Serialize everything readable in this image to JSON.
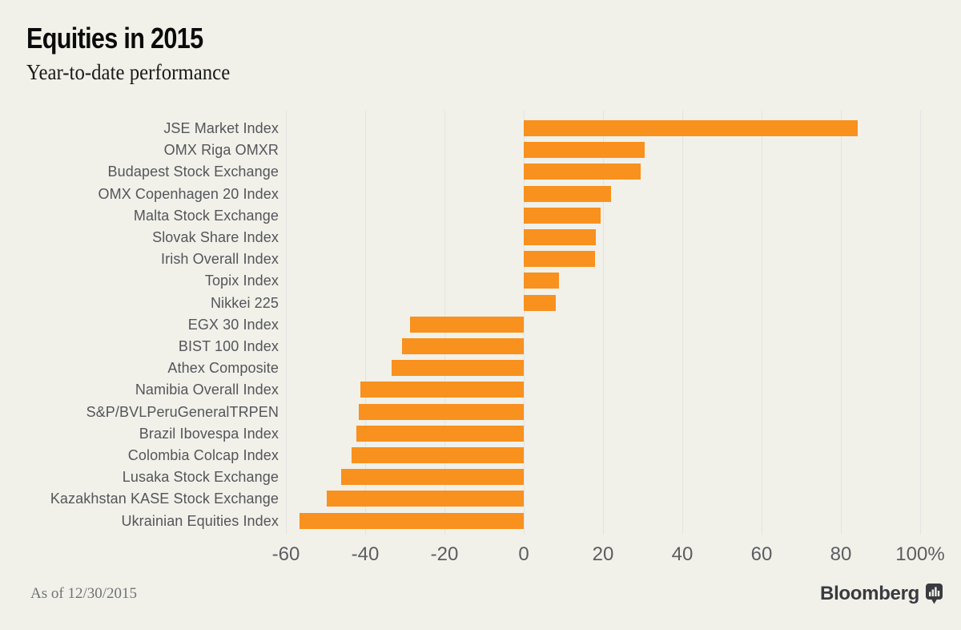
{
  "header": {
    "title": "Equities in 2015",
    "subtitle": "Year-to-date performance"
  },
  "footer": {
    "as_of": "As of 12/30/2015",
    "brand": "Bloomberg",
    "brand_icon": "bar-chart-bubble-icon"
  },
  "colors": {
    "background": "#F1F1EA",
    "bar_orange": "#F8911E",
    "gridline": "#E3E3E2",
    "category_label": "#54555A",
    "axis_tick": "#5C5D61",
    "title": "#0B0B0B",
    "footer_text": "#717276",
    "logo": "#3A3B3F"
  },
  "chart_data": {
    "type": "bar",
    "orientation": "horizontal",
    "title": "Equities in 2015",
    "subtitle": "Year-to-date performance",
    "value_unit": "percent",
    "categories": [
      "JSE Market Index",
      "OMX Riga OMXR",
      "Budapest Stock Exchange",
      "OMX Copenhagen 20 Index",
      "Malta Stock Exchange",
      "Slovak Share Index",
      "Irish Overall Index",
      "Topix Index",
      "Nikkei 225",
      "EGX 30 Index",
      "BIST 100 Index",
      "Athex Composite",
      "Namibia Overall Index",
      "S&P/BVLPeruGeneralTRPEN",
      "Brazil Ibovespa Index",
      "Colombia Colcap Index",
      "Lusaka Stock Exchange",
      "Kazakhstan KASE Stock Exchange",
      "Ukrainian Equities Index"
    ],
    "values": [
      84.2,
      30.6,
      29.4,
      22.1,
      19.3,
      18.2,
      18.0,
      8.9,
      8.0,
      -28.6,
      -30.8,
      -33.3,
      -41.3,
      -41.6,
      -42.2,
      -43.5,
      -46.0,
      -49.6,
      -56.5
    ],
    "xlim": [
      -60,
      100
    ],
    "xticks": {
      "values": [
        -60,
        -40,
        -20,
        0,
        20,
        40,
        60,
        80,
        100
      ],
      "labels": [
        "-60",
        "-40",
        "-20",
        "0",
        "20",
        "40",
        "60",
        "80",
        "100%"
      ]
    },
    "grid": "vertical",
    "legend": "none",
    "as_of": "As of 12/30/2015"
  }
}
